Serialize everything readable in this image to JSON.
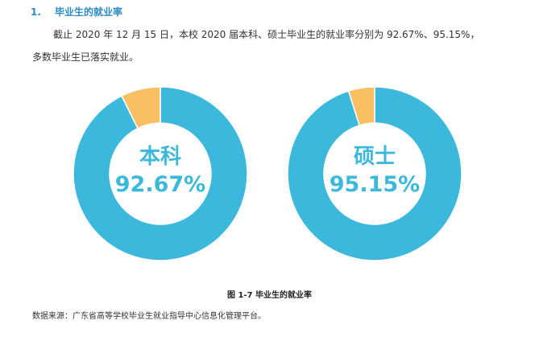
{
  "section": {
    "number": "1.",
    "title": "毕业生的就业率"
  },
  "paragraph": {
    "line1": "截止 2020 年 12 月 15 日，本校 2020 届本科、硕士毕业生的就业率分别为 92.67%、95.15%，",
    "line2": "多数毕业生已落实就业。"
  },
  "colors": {
    "employed": "#3db8dd",
    "remaining": "#fbbf63",
    "heading": "#2b8cc4"
  },
  "chart_data": [
    {
      "type": "pie",
      "style": "donut",
      "center_name": "本科",
      "center_value": "92.67%",
      "values": [
        92.67,
        7.33
      ]
    },
    {
      "type": "pie",
      "style": "donut",
      "center_name": "硕士",
      "center_value": "95.15%",
      "values": [
        95.15,
        4.85
      ]
    }
  ],
  "caption": "图 1-7 毕业生的就业率",
  "source": "数据来源：广东省高等学校毕业生就业指导中心信息化管理平台。"
}
